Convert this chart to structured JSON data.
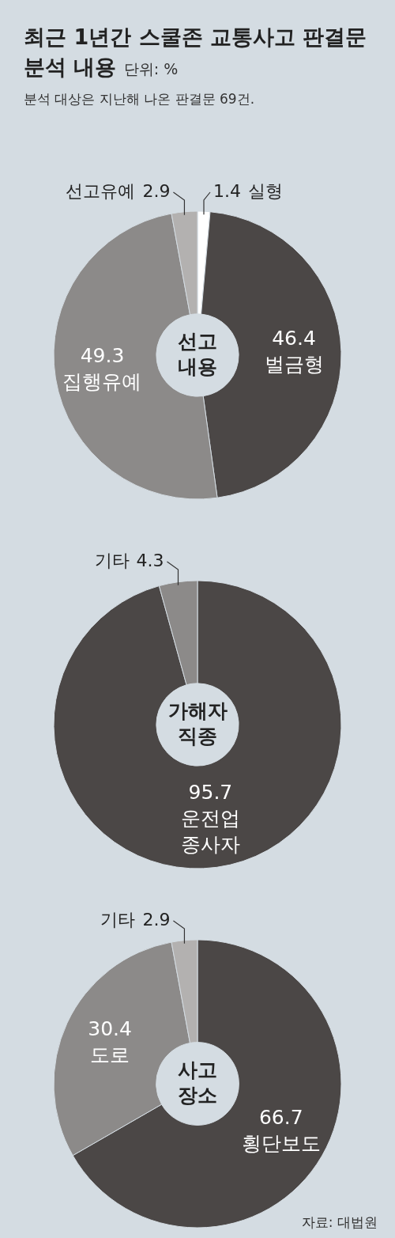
{
  "chart_data": [
    {
      "type": "other",
      "title": "최근 1년간 스쿨존 교통사고 판결문 분석 내용",
      "subtitle": "분석 대상은 지난해 나온 판결문 69건.",
      "annotations": [
        "단위: %"
      ]
    },
    {
      "type": "donut",
      "title": "선고 내용",
      "categories": [
        "실형",
        "벌금형",
        "집행유예",
        "선고유예"
      ],
      "values": [
        1.4,
        46.4,
        49.3,
        2.9
      ],
      "colors": [
        "#ffffff",
        "#4b4746",
        "#8c8a89",
        "#b3b1b0"
      ],
      "data_labels": true
    },
    {
      "type": "donut",
      "title": "가해자 직종",
      "categories": [
        "운전업 종사자",
        "기타"
      ],
      "values": [
        95.7,
        4.3
      ],
      "colors": [
        "#4b4746",
        "#8c8a89"
      ],
      "data_labels": true
    },
    {
      "type": "donut",
      "title": "사고 장소",
      "categories": [
        "횡단보도",
        "도로",
        "기타"
      ],
      "values": [
        66.7,
        30.4,
        2.9
      ],
      "colors": [
        "#4b4746",
        "#8c8a89",
        "#b3b1b0"
      ],
      "data_labels": true,
      "annotations": [
        "자료: 대법원"
      ]
    }
  ]
}
